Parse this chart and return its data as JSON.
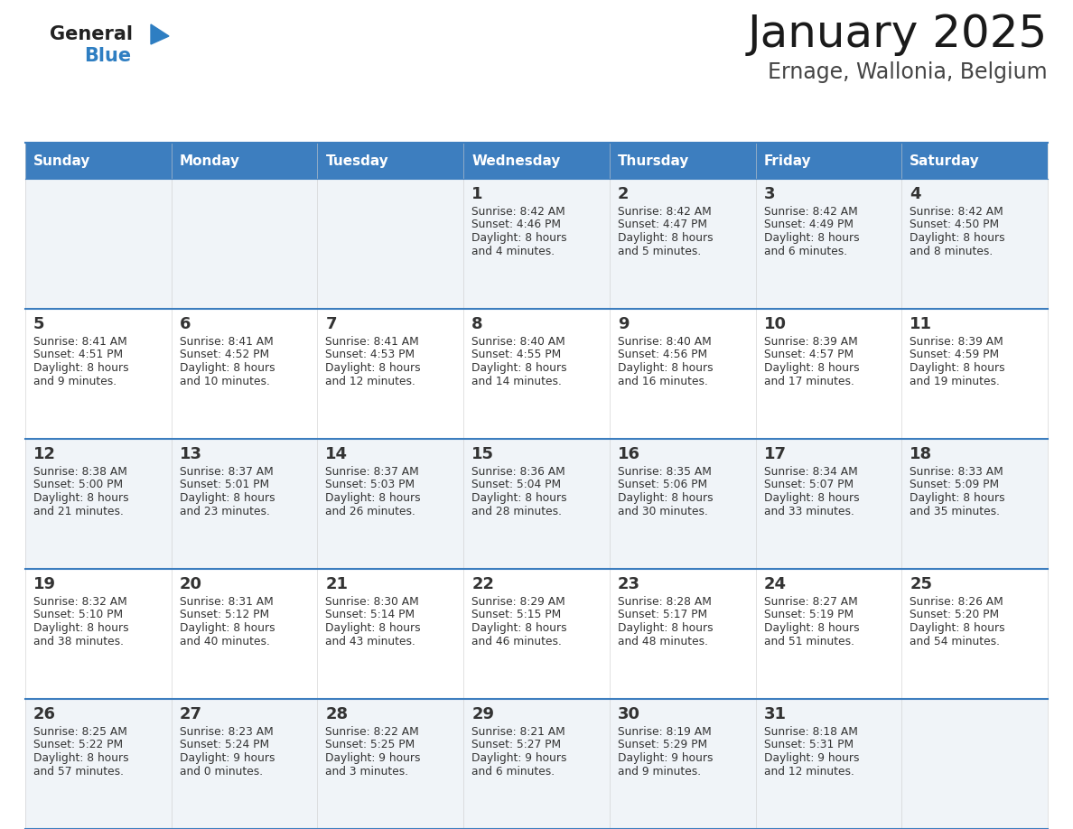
{
  "title": "January 2025",
  "subtitle": "Ernage, Wallonia, Belgium",
  "header_bg_color": "#3d7ebf",
  "header_text_color": "#ffffff",
  "weekdays": [
    "Sunday",
    "Monday",
    "Tuesday",
    "Wednesday",
    "Thursday",
    "Friday",
    "Saturday"
  ],
  "row_bg_even": "#f0f4f8",
  "row_bg_odd": "#ffffff",
  "cell_border_color": "#3d7ebf",
  "day_number_color": "#333333",
  "cell_text_color": "#333333",
  "logo_general_color": "#222222",
  "logo_blue_color": "#2e7ec2",
  "days": [
    {
      "day": 1,
      "col": 3,
      "row": 0,
      "sunrise": "8:42 AM",
      "sunset": "4:46 PM",
      "daylight": "8 hours and 4 minutes."
    },
    {
      "day": 2,
      "col": 4,
      "row": 0,
      "sunrise": "8:42 AM",
      "sunset": "4:47 PM",
      "daylight": "8 hours and 5 minutes."
    },
    {
      "day": 3,
      "col": 5,
      "row": 0,
      "sunrise": "8:42 AM",
      "sunset": "4:49 PM",
      "daylight": "8 hours and 6 minutes."
    },
    {
      "day": 4,
      "col": 6,
      "row": 0,
      "sunrise": "8:42 AM",
      "sunset": "4:50 PM",
      "daylight": "8 hours and 8 minutes."
    },
    {
      "day": 5,
      "col": 0,
      "row": 1,
      "sunrise": "8:41 AM",
      "sunset": "4:51 PM",
      "daylight": "8 hours and 9 minutes."
    },
    {
      "day": 6,
      "col": 1,
      "row": 1,
      "sunrise": "8:41 AM",
      "sunset": "4:52 PM",
      "daylight": "8 hours and 10 minutes."
    },
    {
      "day": 7,
      "col": 2,
      "row": 1,
      "sunrise": "8:41 AM",
      "sunset": "4:53 PM",
      "daylight": "8 hours and 12 minutes."
    },
    {
      "day": 8,
      "col": 3,
      "row": 1,
      "sunrise": "8:40 AM",
      "sunset": "4:55 PM",
      "daylight": "8 hours and 14 minutes."
    },
    {
      "day": 9,
      "col": 4,
      "row": 1,
      "sunrise": "8:40 AM",
      "sunset": "4:56 PM",
      "daylight": "8 hours and 16 minutes."
    },
    {
      "day": 10,
      "col": 5,
      "row": 1,
      "sunrise": "8:39 AM",
      "sunset": "4:57 PM",
      "daylight": "8 hours and 17 minutes."
    },
    {
      "day": 11,
      "col": 6,
      "row": 1,
      "sunrise": "8:39 AM",
      "sunset": "4:59 PM",
      "daylight": "8 hours and 19 minutes."
    },
    {
      "day": 12,
      "col": 0,
      "row": 2,
      "sunrise": "8:38 AM",
      "sunset": "5:00 PM",
      "daylight": "8 hours and 21 minutes."
    },
    {
      "day": 13,
      "col": 1,
      "row": 2,
      "sunrise": "8:37 AM",
      "sunset": "5:01 PM",
      "daylight": "8 hours and 23 minutes."
    },
    {
      "day": 14,
      "col": 2,
      "row": 2,
      "sunrise": "8:37 AM",
      "sunset": "5:03 PM",
      "daylight": "8 hours and 26 minutes."
    },
    {
      "day": 15,
      "col": 3,
      "row": 2,
      "sunrise": "8:36 AM",
      "sunset": "5:04 PM",
      "daylight": "8 hours and 28 minutes."
    },
    {
      "day": 16,
      "col": 4,
      "row": 2,
      "sunrise": "8:35 AM",
      "sunset": "5:06 PM",
      "daylight": "8 hours and 30 minutes."
    },
    {
      "day": 17,
      "col": 5,
      "row": 2,
      "sunrise": "8:34 AM",
      "sunset": "5:07 PM",
      "daylight": "8 hours and 33 minutes."
    },
    {
      "day": 18,
      "col": 6,
      "row": 2,
      "sunrise": "8:33 AM",
      "sunset": "5:09 PM",
      "daylight": "8 hours and 35 minutes."
    },
    {
      "day": 19,
      "col": 0,
      "row": 3,
      "sunrise": "8:32 AM",
      "sunset": "5:10 PM",
      "daylight": "8 hours and 38 minutes."
    },
    {
      "day": 20,
      "col": 1,
      "row": 3,
      "sunrise": "8:31 AM",
      "sunset": "5:12 PM",
      "daylight": "8 hours and 40 minutes."
    },
    {
      "day": 21,
      "col": 2,
      "row": 3,
      "sunrise": "8:30 AM",
      "sunset": "5:14 PM",
      "daylight": "8 hours and 43 minutes."
    },
    {
      "day": 22,
      "col": 3,
      "row": 3,
      "sunrise": "8:29 AM",
      "sunset": "5:15 PM",
      "daylight": "8 hours and 46 minutes."
    },
    {
      "day": 23,
      "col": 4,
      "row": 3,
      "sunrise": "8:28 AM",
      "sunset": "5:17 PM",
      "daylight": "8 hours and 48 minutes."
    },
    {
      "day": 24,
      "col": 5,
      "row": 3,
      "sunrise": "8:27 AM",
      "sunset": "5:19 PM",
      "daylight": "8 hours and 51 minutes."
    },
    {
      "day": 25,
      "col": 6,
      "row": 3,
      "sunrise": "8:26 AM",
      "sunset": "5:20 PM",
      "daylight": "8 hours and 54 minutes."
    },
    {
      "day": 26,
      "col": 0,
      "row": 4,
      "sunrise": "8:25 AM",
      "sunset": "5:22 PM",
      "daylight": "8 hours and 57 minutes."
    },
    {
      "day": 27,
      "col": 1,
      "row": 4,
      "sunrise": "8:23 AM",
      "sunset": "5:24 PM",
      "daylight": "9 hours and 0 minutes."
    },
    {
      "day": 28,
      "col": 2,
      "row": 4,
      "sunrise": "8:22 AM",
      "sunset": "5:25 PM",
      "daylight": "9 hours and 3 minutes."
    },
    {
      "day": 29,
      "col": 3,
      "row": 4,
      "sunrise": "8:21 AM",
      "sunset": "5:27 PM",
      "daylight": "9 hours and 6 minutes."
    },
    {
      "day": 30,
      "col": 4,
      "row": 4,
      "sunrise": "8:19 AM",
      "sunset": "5:29 PM",
      "daylight": "9 hours and 9 minutes."
    },
    {
      "day": 31,
      "col": 5,
      "row": 4,
      "sunrise": "8:18 AM",
      "sunset": "5:31 PM",
      "daylight": "9 hours and 12 minutes."
    }
  ]
}
